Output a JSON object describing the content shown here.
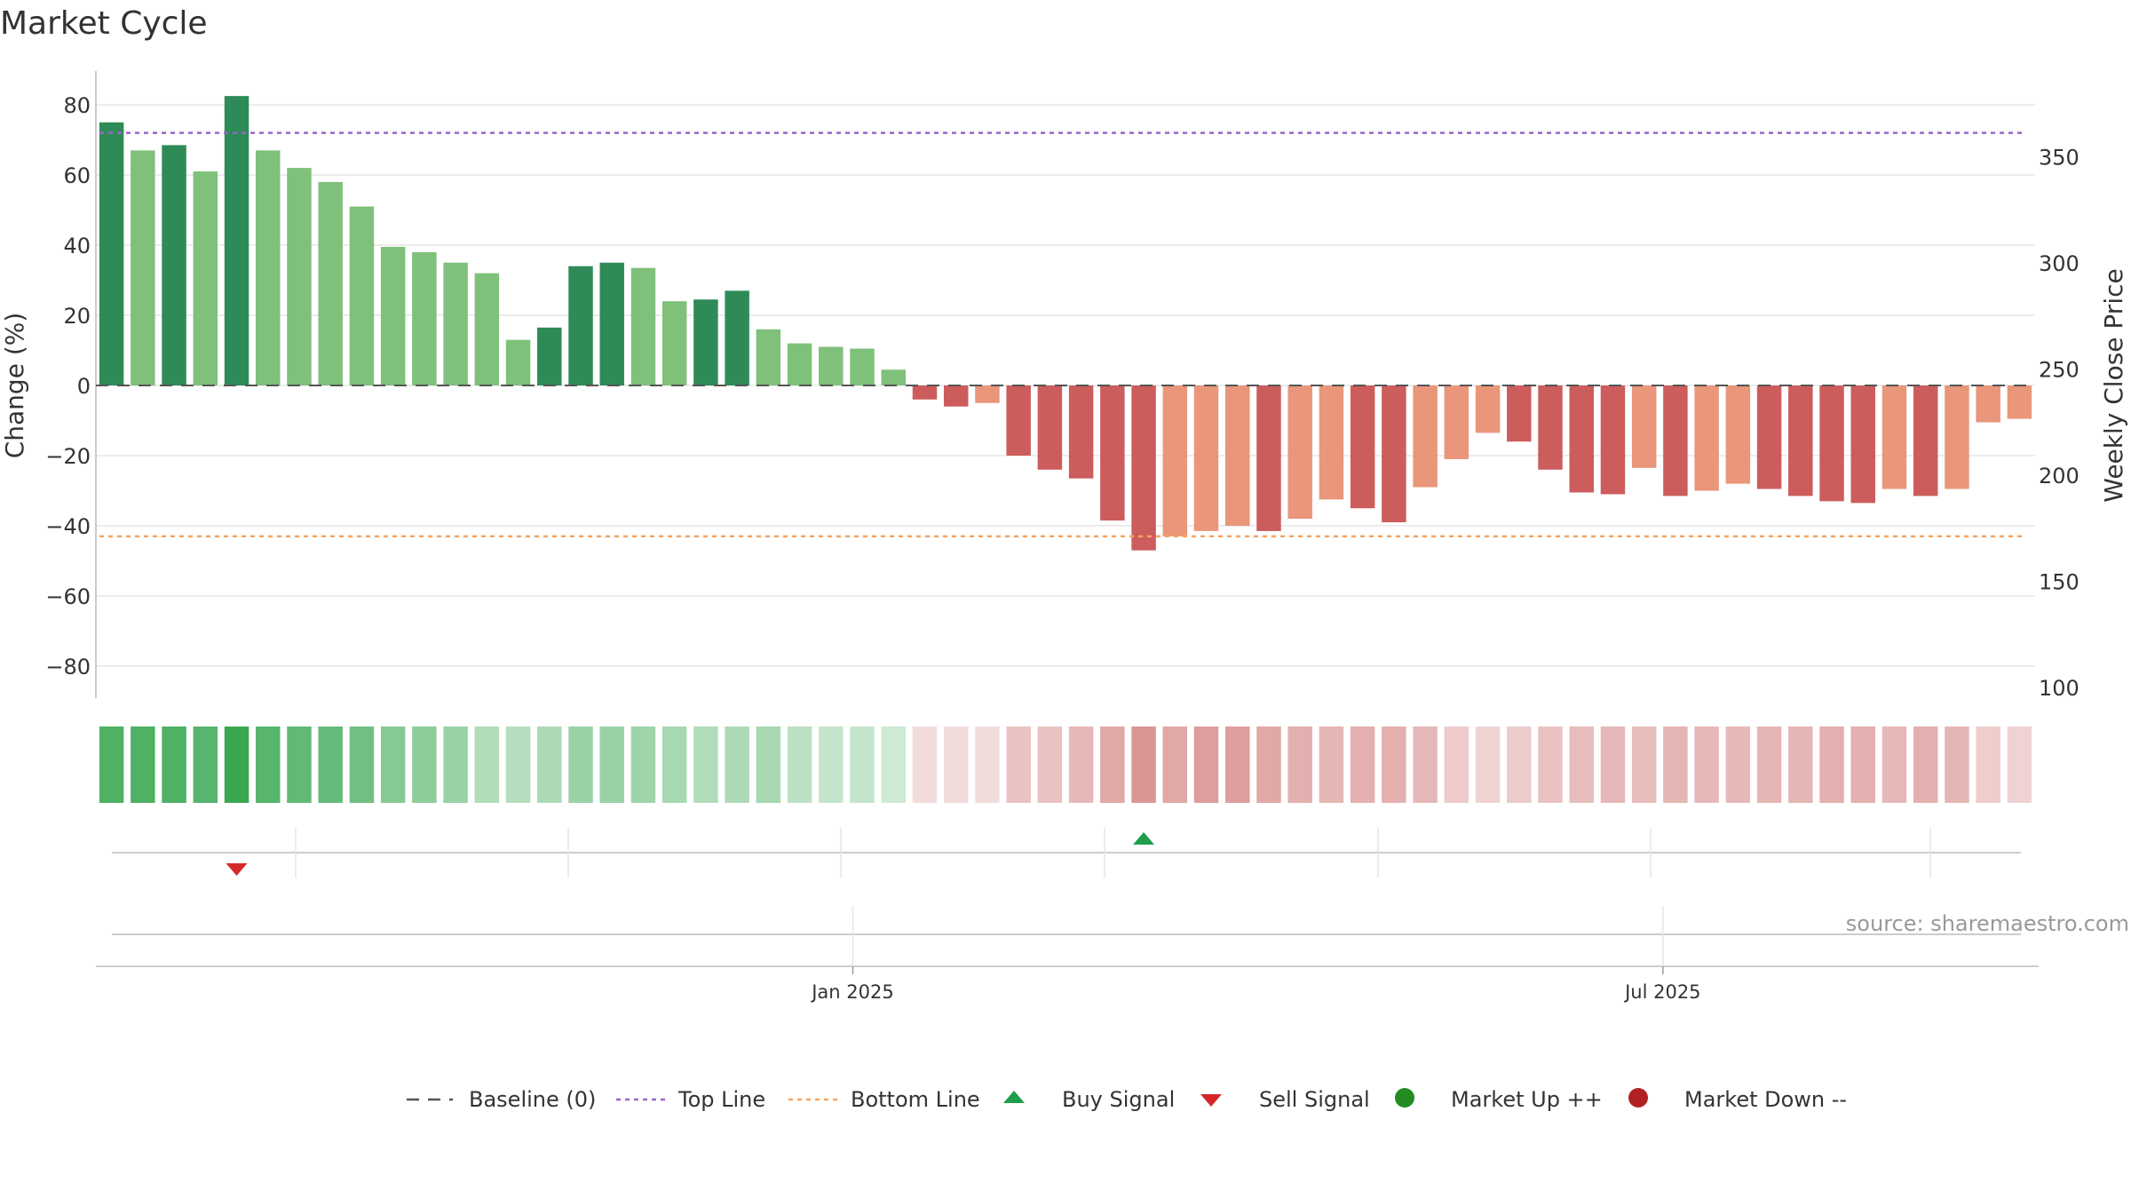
{
  "chart_data": {
    "type": "bar",
    "title": "Market Cycle",
    "ylabel": "Change (%)",
    "y2label": "Weekly Close Price",
    "ylim": [
      -90,
      90
    ],
    "y2lim": [
      100,
      380
    ],
    "yticks": [
      80,
      60,
      40,
      20,
      0,
      -20,
      -40,
      -60,
      -80
    ],
    "ytick_labels": [
      "80",
      "60",
      "40",
      "20",
      "0",
      "−20",
      "−40",
      "−60",
      "−80"
    ],
    "y2ticks": [
      350,
      300,
      250,
      200,
      150,
      100
    ],
    "y2tick_labels": [
      "350",
      "300",
      "250",
      "200",
      "150",
      "100"
    ],
    "top_line": 72,
    "bottom_line": -43,
    "values": [
      75,
      67,
      68.5,
      61,
      82.5,
      67,
      62,
      58,
      51,
      39.5,
      38,
      35,
      32,
      13,
      16.5,
      34,
      35,
      33.5,
      24,
      24.5,
      27,
      16,
      12,
      11,
      10.5,
      4.5,
      -4,
      -6,
      -5,
      -20,
      -24,
      -26.5,
      -38.5,
      -47,
      -43,
      -41.5,
      -40,
      -41.5,
      -38,
      -32.5,
      -35,
      -39,
      -29,
      -21,
      -13.5,
      -16,
      -24,
      -30.5,
      -31,
      -23.5,
      -31.5,
      -30,
      -28,
      -29.5,
      -31.5,
      -33,
      -33.5,
      -29.5,
      -31.5,
      -29.5,
      -10.5,
      -9.5
    ],
    "strength": [
      3,
      2,
      3,
      2,
      3,
      2,
      2,
      2,
      2,
      2,
      2,
      2,
      2,
      2,
      3,
      3,
      3,
      2,
      2,
      3,
      3,
      2,
      2,
      2,
      2,
      2,
      3,
      3,
      2,
      3,
      3,
      3,
      3,
      3,
      2,
      2,
      2,
      3,
      2,
      2,
      3,
      3,
      2,
      2,
      2,
      3,
      3,
      3,
      3,
      2,
      3,
      2,
      2,
      3,
      3,
      3,
      3,
      2,
      3,
      2,
      2,
      2
    ],
    "heat": [
      0.9,
      0.9,
      0.9,
      0.85,
      1.0,
      0.85,
      0.8,
      0.78,
      0.72,
      0.62,
      0.58,
      0.52,
      0.4,
      0.38,
      0.42,
      0.52,
      0.52,
      0.5,
      0.45,
      0.4,
      0.42,
      0.45,
      0.35,
      0.3,
      0.3,
      0.25,
      -0.2,
      -0.2,
      -0.2,
      -0.35,
      -0.35,
      -0.4,
      -0.5,
      -0.6,
      -0.5,
      -0.55,
      -0.55,
      -0.5,
      -0.45,
      -0.42,
      -0.45,
      -0.45,
      -0.4,
      -0.3,
      -0.25,
      -0.3,
      -0.35,
      -0.38,
      -0.4,
      -0.38,
      -0.42,
      -0.4,
      -0.4,
      -0.42,
      -0.42,
      -0.45,
      -0.45,
      -0.4,
      -0.45,
      -0.42,
      -0.28,
      -0.25
    ],
    "signals": [
      {
        "type": "sell",
        "index": 4
      },
      {
        "type": "buy",
        "index": 33
      }
    ],
    "date_ticks": [
      {
        "label": "Jan 2025",
        "index": 23.7
      },
      {
        "label": "Jul 2025",
        "index": 49.6
      }
    ],
    "source": "source: sharemaestro.com",
    "legend": [
      {
        "key": "baseline",
        "label": "Baseline (0)"
      },
      {
        "key": "top",
        "label": "Top Line"
      },
      {
        "key": "bottom",
        "label": "Bottom Line"
      },
      {
        "key": "buy",
        "label": "Buy Signal"
      },
      {
        "key": "sell",
        "label": "Sell Signal"
      },
      {
        "key": "up",
        "label": "Market Up ++"
      },
      {
        "key": "down",
        "label": "Market Down --"
      }
    ],
    "colors": {
      "up_strong": "#2e8b57",
      "up_weak": "#7fc07b",
      "down_strong": "#cd5c5c",
      "down_weak": "#e9967a",
      "top_line": "#9966cc",
      "bottom_line": "#f4a460",
      "baseline": "#555555",
      "buy": "#1e9e4a",
      "sell": "#d62728",
      "market_up": "#228b22",
      "market_down": "#b22222",
      "grid": "#e6e6e6",
      "axis": "#cccccc"
    }
  }
}
